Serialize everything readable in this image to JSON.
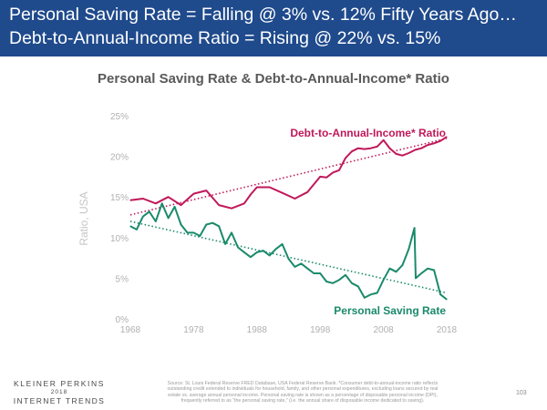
{
  "header": {
    "line1": "Personal Saving Rate = Falling @ 3% vs. 12% Fifty Years Ago…",
    "line2": "Debt-to-Annual-Income Ratio = Rising @ 22% vs. 15%"
  },
  "colors": {
    "banner": "#1f4a8c",
    "debt": "#c0185a",
    "saving": "#1a8a6a",
    "axis_text": "#b0b0b0"
  },
  "chart_data": {
    "type": "line",
    "title": "Personal Saving Rate & Debt-to-Annual-Income* Ratio",
    "xlabel": "",
    "ylabel": "Ratio, USA",
    "xlim": [
      1968,
      2018
    ],
    "ylim": [
      0,
      25
    ],
    "x_ticks": [
      "1968",
      "1978",
      "1988",
      "1998",
      "2008",
      "2018"
    ],
    "y_ticks": [
      "0%",
      "5%",
      "10%",
      "15%",
      "20%",
      "25%"
    ],
    "grid": false,
    "series": [
      {
        "name": "Debt-to-Annual-Income* Ratio",
        "label": "Debt-to-Annual-Income* Ratio",
        "x": [
          1968,
          1970,
          1972,
          1974,
          1976,
          1978,
          1980,
          1982,
          1984,
          1986,
          1987,
          1988,
          1990,
          1992,
          1994,
          1996,
          1998,
          1999,
          2000,
          2001,
          2002,
          2003,
          2004,
          2005,
          2006,
          2007,
          2008,
          2009,
          2010,
          2011,
          2012,
          2013,
          2014,
          2015,
          2016,
          2017,
          2018
        ],
        "values": [
          14.6,
          14.8,
          14.2,
          15.0,
          14.0,
          15.4,
          15.8,
          14.0,
          13.6,
          14.2,
          15.3,
          16.2,
          16.2,
          15.5,
          14.8,
          15.6,
          17.5,
          17.4,
          18.0,
          18.3,
          19.8,
          20.6,
          21.0,
          20.9,
          21.0,
          21.2,
          22.0,
          21.0,
          20.3,
          20.1,
          20.4,
          20.8,
          21.0,
          21.4,
          21.6,
          21.9,
          22.4
        ],
        "trend": [
          12.8,
          22.2
        ]
      },
      {
        "name": "Personal Saving Rate",
        "label": "Personal Saving Rate",
        "x": [
          1968,
          1969,
          1970,
          1971,
          1972,
          1973,
          1974,
          1975,
          1976,
          1977,
          1978,
          1979,
          1980,
          1981,
          1982,
          1983,
          1984,
          1985,
          1986,
          1987,
          1988,
          1989,
          1990,
          1991,
          1992,
          1993,
          1994,
          1995,
          1996,
          1997,
          1998,
          1999,
          2000,
          2001,
          2002,
          2003,
          2004,
          2005,
          2006,
          2007,
          2008,
          2009,
          2010,
          2011,
          2012,
          2012.9,
          2013.1,
          2014,
          2015,
          2016,
          2017,
          2018
        ],
        "values": [
          11.4,
          11.0,
          12.6,
          13.2,
          12.0,
          14.2,
          12.4,
          13.8,
          11.6,
          10.6,
          10.6,
          10.2,
          11.6,
          11.8,
          11.4,
          9.2,
          10.6,
          8.8,
          8.2,
          7.6,
          8.2,
          8.4,
          7.8,
          8.6,
          9.2,
          7.4,
          6.4,
          6.8,
          6.2,
          5.6,
          5.6,
          4.6,
          4.4,
          4.8,
          5.4,
          4.4,
          4.0,
          2.6,
          3.0,
          3.2,
          4.8,
          6.2,
          5.8,
          6.6,
          8.6,
          11.2,
          5.0,
          5.6,
          6.2,
          6.0,
          3.0,
          2.4
        ],
        "trend": [
          12.0,
          3.2
        ]
      }
    ],
    "annotations": []
  },
  "footer": {
    "logo_line1": "KLEINER PERKINS",
    "logo_line2": "2018",
    "logo_line3": "INTERNET TRENDS",
    "source_lines": [
      "Source: St. Louis Federal Reserve FRED Database, USA Federal Reserve Bank. *Consumer debt-to-annual-income ratio reflects",
      "outstanding credit extended to individuals for household, family, and other personal expenditures, excluding loans secured by real",
      "estate vs. average annual personal income. Personal saving rate is shown as a percentage of disposable personal income (DPI),",
      "frequently referred to as \"the personal saving rate,\" (i.e. the annual share of disposable income dedicated to saving)."
    ],
    "page": "103"
  }
}
